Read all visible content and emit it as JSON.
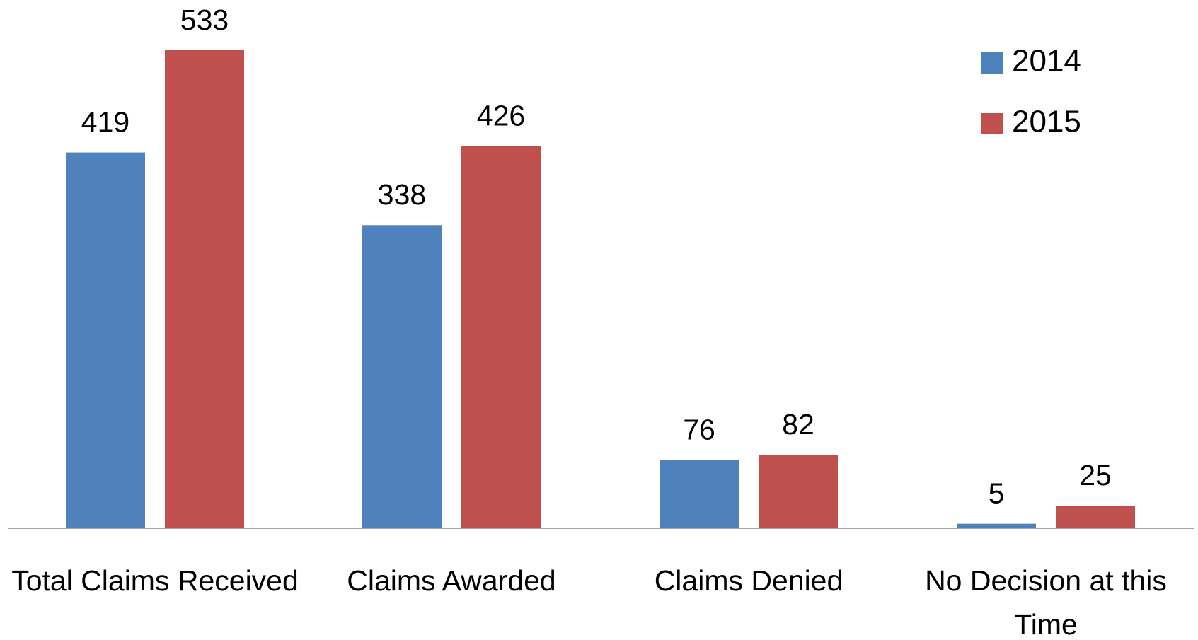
{
  "chart_data": {
    "type": "bar",
    "categories": [
      "Total Claims Received",
      "Claims Awarded",
      "Claims Denied",
      "No Decision at this Time"
    ],
    "series": [
      {
        "name": "2014",
        "color": "#4f81bd",
        "values": [
          419,
          338,
          76,
          5
        ]
      },
      {
        "name": "2015",
        "color": "#c0504d",
        "values": [
          533,
          426,
          82,
          25
        ]
      }
    ],
    "legend": "top-right"
  }
}
